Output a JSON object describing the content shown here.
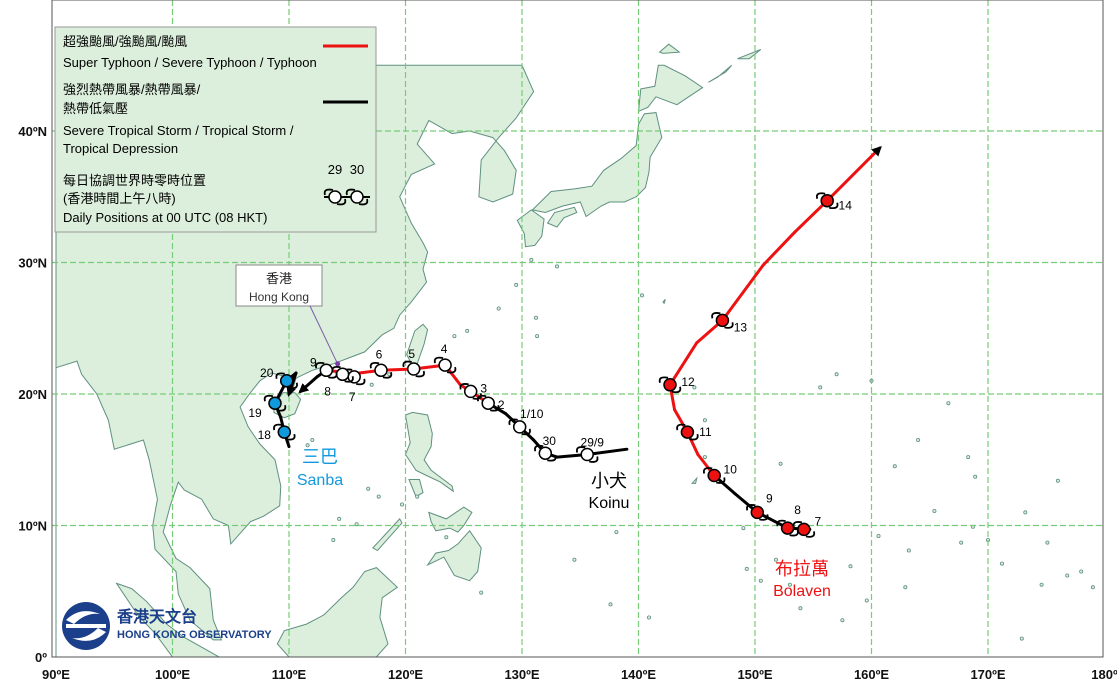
{
  "map": {
    "axes": {
      "lon_labels": [
        "90ºE",
        "100ºE",
        "110ºE",
        "120ºE",
        "130ºE",
        "140ºE",
        "150ºE",
        "160ºE",
        "170ºE",
        "180º"
      ],
      "lat_labels": [
        "0º",
        "10ºN",
        "20ºN",
        "30ºN",
        "40ºN"
      ]
    },
    "colors": {
      "sea": "#ffffff",
      "land": "#dcefdc",
      "coast": "#5f9080",
      "grid": "#77cc77",
      "typhoon": "#ee1111",
      "storm": "#000000",
      "sanba_marker": "#1199dd"
    },
    "legend": {
      "typhoon_zh": "超強颱風/強颱風/颱風",
      "typhoon_en": "Super Typhoon / Severe Typhoon / Typhoon",
      "storm_zh_1": "強烈熱帶風暴/熱帶風暴/",
      "storm_zh_2": "熱帶低氣壓",
      "storm_en_1": "Severe Tropical Storm / Tropical Storm /",
      "storm_en_2": "Tropical Depression",
      "daily_zh_1": "每日協調世界時零時位置",
      "daily_zh_2": "(香港時間上午八時)",
      "daily_en": "Daily Positions at 00 UTC (08 HKT)",
      "sample_day_1": "29",
      "sample_day_2": "30"
    },
    "hong_kong": {
      "zh": "香港",
      "en": "Hong Kong",
      "lon": 114.17,
      "lat": 22.3
    },
    "logo": {
      "zh": "香港天文台",
      "en": "HONG KONG OBSERVATORY"
    },
    "storms": [
      {
        "id": "koinu",
        "name_zh": "小犬",
        "name_en": "Koinu",
        "name_color": "#000000",
        "marker_color": "#ffffff",
        "track": [
          {
            "lon": 139,
            "lat": 15.8,
            "cat": "storm"
          },
          {
            "lon": 135.6,
            "lat": 15.4,
            "cat": "storm"
          },
          {
            "lon": 133,
            "lat": 15.2,
            "cat": "storm"
          },
          {
            "lon": 132,
            "lat": 15.5,
            "cat": "storm"
          },
          {
            "lon": 131,
            "lat": 16.5,
            "cat": "storm"
          },
          {
            "lon": 129.8,
            "lat": 17.5,
            "cat": "storm"
          },
          {
            "lon": 128.6,
            "lat": 18.5,
            "cat": "storm"
          },
          {
            "lon": 127.1,
            "lat": 19.3,
            "cat": "typhoon"
          },
          {
            "lon": 125.6,
            "lat": 20.2,
            "cat": "typhoon"
          },
          {
            "lon": 124.7,
            "lat": 20.7,
            "cat": "typhoon"
          },
          {
            "lon": 123.4,
            "lat": 22.2,
            "cat": "typhoon"
          },
          {
            "lon": 120.7,
            "lat": 21.9,
            "cat": "typhoon"
          },
          {
            "lon": 117.9,
            "lat": 21.8,
            "cat": "typhoon"
          },
          {
            "lon": 115.2,
            "lat": 21.5,
            "cat": "typhoon"
          },
          {
            "lon": 114.2,
            "lat": 21.7,
            "cat": "typhoon"
          },
          {
            "lon": 113.2,
            "lat": 21.8,
            "cat": "storm"
          },
          {
            "lon": 112.4,
            "lat": 21.3,
            "cat": "storm"
          },
          {
            "lon": 111,
            "lat": 20.2,
            "cat": "storm"
          }
        ],
        "daily": [
          {
            "label": "29/9",
            "lon": 135.6,
            "lat": 15.4,
            "dx": 5,
            "dy": -12
          },
          {
            "label": "30",
            "lon": 132,
            "lat": 15.5,
            "dx": 4,
            "dy": -12
          },
          {
            "label": "1/10",
            "lon": 129.8,
            "lat": 17.5,
            "dx": 12,
            "dy": -13
          },
          {
            "label": "2",
            "lon": 127.1,
            "lat": 19.3,
            "dx": 13,
            "dy": 2
          },
          {
            "label": "3",
            "lon": 125.6,
            "lat": 20.2,
            "dx": 13,
            "dy": -3
          },
          {
            "label": "4",
            "lon": 123.4,
            "lat": 22.2,
            "dx": -1,
            "dy": -16
          },
          {
            "label": "5",
            "lon": 120.7,
            "lat": 21.9,
            "dx": -2,
            "dy": -15
          },
          {
            "label": "6",
            "lon": 117.9,
            "lat": 21.8,
            "dx": -2,
            "dy": -16
          },
          {
            "label": "7",
            "lon": 115.6,
            "lat": 21.3,
            "dx": -2,
            "dy": 20
          },
          {
            "label": "8",
            "lon": 114.6,
            "lat": 21.5,
            "dx": -15,
            "dy": 17
          },
          {
            "label": "9",
            "lon": 113.2,
            "lat": 21.8,
            "dx": -13,
            "dy": -8
          }
        ]
      },
      {
        "id": "bolaven",
        "name_zh": "布拉萬",
        "name_en": "Bolaven",
        "name_color": "#ee1111",
        "marker_color": "#ee1111",
        "track": [
          {
            "lon": 154.7,
            "lat": 9.7,
            "cat": "storm"
          },
          {
            "lon": 152.8,
            "lat": 9.8,
            "cat": "storm"
          },
          {
            "lon": 150.2,
            "lat": 11.0,
            "cat": "storm"
          },
          {
            "lon": 148.3,
            "lat": 12.4,
            "cat": "storm"
          },
          {
            "lon": 146.5,
            "lat": 13.8,
            "cat": "typhoon"
          },
          {
            "lon": 145.1,
            "lat": 15.4,
            "cat": "typhoon"
          },
          {
            "lon": 144.2,
            "lat": 17.1,
            "cat": "typhoon"
          },
          {
            "lon": 143.1,
            "lat": 18.8,
            "cat": "typhoon"
          },
          {
            "lon": 142.7,
            "lat": 20.7,
            "cat": "typhoon"
          },
          {
            "lon": 145,
            "lat": 23.9,
            "cat": "typhoon"
          },
          {
            "lon": 147.2,
            "lat": 25.6,
            "cat": "typhoon"
          },
          {
            "lon": 150.7,
            "lat": 29.8,
            "cat": "typhoon"
          },
          {
            "lon": 153.4,
            "lat": 32.3,
            "cat": "typhoon"
          },
          {
            "lon": 156.2,
            "lat": 34.7,
            "cat": "typhoon"
          },
          {
            "lon": 160.7,
            "lat": 38.7,
            "cat": "typhoon"
          }
        ],
        "daily": [
          {
            "label": "7",
            "lon": 154.2,
            "lat": 9.7,
            "dx": 14,
            "dy": -8
          },
          {
            "label": "8",
            "lon": 152.8,
            "lat": 9.8,
            "dx": 10,
            "dy": -18
          },
          {
            "label": "9",
            "lon": 150.2,
            "lat": 11.0,
            "dx": 12,
            "dy": -14
          },
          {
            "label": "10",
            "lon": 146.5,
            "lat": 13.8,
            "dx": 16,
            "dy": -6
          },
          {
            "label": "11",
            "lon": 144.2,
            "lat": 17.1,
            "dx": 18,
            "dy": 0
          },
          {
            "label": "12",
            "lon": 142.7,
            "lat": 20.7,
            "dx": 18,
            "dy": -3
          },
          {
            "label": "13",
            "lon": 147.2,
            "lat": 25.6,
            "dx": 18,
            "dy": 7
          },
          {
            "label": "14",
            "lon": 156.2,
            "lat": 34.7,
            "dx": 18,
            "dy": 5
          }
        ]
      },
      {
        "id": "sanba",
        "name_zh": "三巴",
        "name_en": "Sanba",
        "name_color": "#1199dd",
        "marker_color": "#1199dd",
        "track": [
          {
            "lon": 110,
            "lat": 16.0,
            "cat": "storm"
          },
          {
            "lon": 109.6,
            "lat": 17.1,
            "cat": "storm"
          },
          {
            "lon": 109.3,
            "lat": 18.2,
            "cat": "storm"
          },
          {
            "lon": 108.8,
            "lat": 19.3,
            "cat": "storm"
          },
          {
            "lon": 109.8,
            "lat": 21.0,
            "cat": "storm"
          },
          {
            "lon": 110.6,
            "lat": 21.6,
            "cat": "storm"
          },
          {
            "lon": 110.0,
            "lat": 20.0,
            "cat": "storm"
          }
        ],
        "daily": [
          {
            "label": "18",
            "lon": 109.6,
            "lat": 17.1,
            "dx": -20,
            "dy": 3
          },
          {
            "label": "19",
            "lon": 108.8,
            "lat": 19.3,
            "dx": -20,
            "dy": 10
          },
          {
            "label": "20",
            "lon": 109.8,
            "lat": 21.0,
            "dx": -20,
            "dy": -8
          }
        ]
      }
    ]
  }
}
